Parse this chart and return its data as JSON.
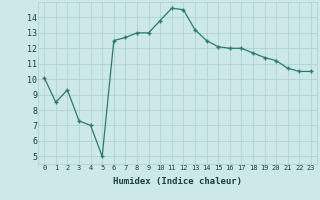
{
  "x": [
    0,
    1,
    2,
    3,
    4,
    5,
    6,
    7,
    8,
    9,
    10,
    11,
    12,
    13,
    14,
    15,
    16,
    17,
    18,
    19,
    20,
    21,
    22,
    23
  ],
  "y": [
    10.1,
    8.5,
    9.3,
    7.3,
    7.0,
    5.0,
    12.5,
    12.7,
    13.0,
    13.0,
    13.8,
    14.6,
    14.5,
    13.2,
    12.5,
    12.1,
    12.0,
    12.0,
    11.7,
    11.4,
    11.2,
    10.7,
    10.5,
    10.5
  ],
  "xlabel": "Humidex (Indice chaleur)",
  "ylim": [
    4.5,
    15.0
  ],
  "xlim": [
    -0.5,
    23.5
  ],
  "yticks": [
    5,
    6,
    7,
    8,
    9,
    10,
    11,
    12,
    13,
    14
  ],
  "xticks": [
    0,
    1,
    2,
    3,
    4,
    5,
    6,
    7,
    8,
    9,
    10,
    11,
    12,
    13,
    14,
    15,
    16,
    17,
    18,
    19,
    20,
    21,
    22,
    23
  ],
  "xtick_labels": [
    "0",
    "1",
    "2",
    "3",
    "4",
    "5",
    "6",
    "7",
    "8",
    "9",
    "10",
    "11",
    "12",
    "13",
    "14",
    "15",
    "16",
    "17",
    "18",
    "19",
    "20",
    "21",
    "22",
    "23"
  ],
  "line_color": "#2d7a6e",
  "marker": "+",
  "marker_size": 4,
  "background_color": "#cce8e8",
  "grid_color": "#aacfcf",
  "font_color": "#1a4040",
  "font_family": "monospace"
}
